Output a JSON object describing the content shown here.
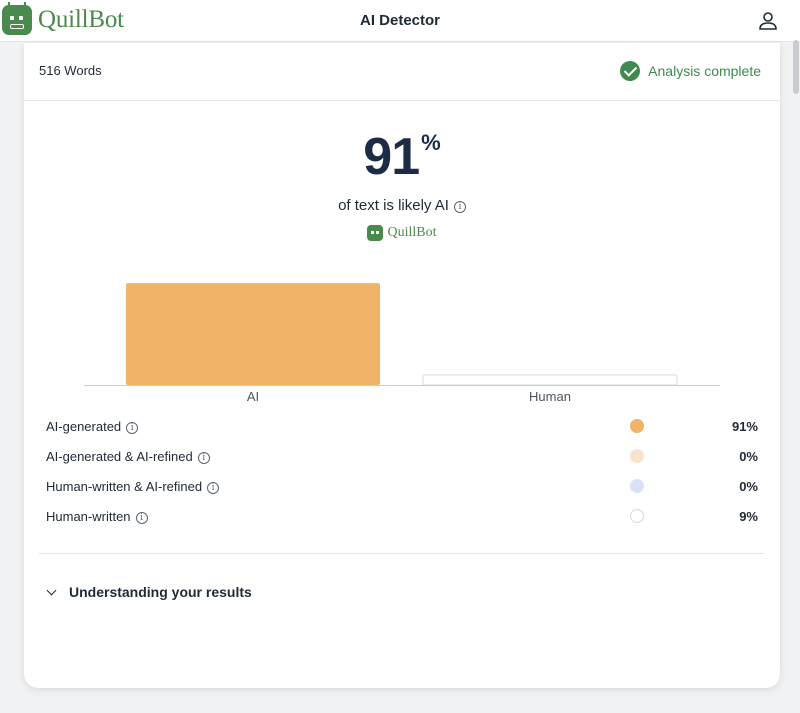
{
  "header": {
    "brand": "QuillBot",
    "title": "AI Detector",
    "user_icon": "user-icon"
  },
  "card": {
    "word_count": "516 Words",
    "status": "Analysis complete",
    "status_color": "#3e8a4f",
    "score_value": "91",
    "score_unit": "%",
    "subtitle": "of text is likely AI",
    "watermark": "QuillBot"
  },
  "chart_data": {
    "type": "bar",
    "categories": [
      "AI",
      "Human"
    ],
    "values": [
      91,
      9
    ],
    "colors": [
      "#f0b367",
      "#ffffff"
    ],
    "ylim": [
      0,
      100
    ]
  },
  "legend": [
    {
      "label": "AI-generated",
      "color": "#f0b367",
      "value": "91%"
    },
    {
      "label": "AI-generated & AI-refined",
      "color": "#f8e4cc",
      "value": "0%"
    },
    {
      "label": "Human-written & AI-refined",
      "color": "#d9e2f5",
      "value": "0%"
    },
    {
      "label": "Human-written",
      "color": "#ffffff",
      "value": "9%"
    }
  ],
  "footer": {
    "understanding": "Understanding your results"
  }
}
